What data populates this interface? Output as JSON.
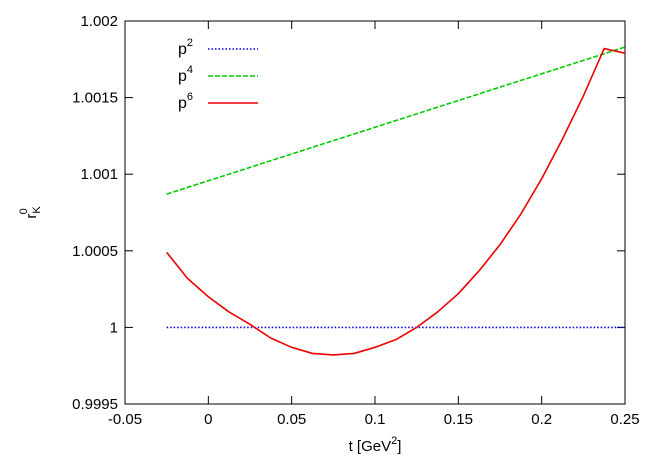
{
  "chart_data": {
    "type": "line",
    "xlabel": {
      "main": "t [GeV",
      "sup": "2",
      "tail": "]"
    },
    "ylabel": {
      "main": "r",
      "sub": "K",
      "sup": "0"
    },
    "xlim": [
      -0.05,
      0.25
    ],
    "ylim": [
      0.9995,
      1.002
    ],
    "xticks": [
      -0.05,
      0,
      0.05,
      0.1,
      0.15,
      0.2,
      0.25
    ],
    "xtick_labels": [
      "-0.05",
      "0",
      "0.05",
      "0.1",
      "0.15",
      "0.2",
      "0.25"
    ],
    "yticks": [
      0.9995,
      1.0,
      1.0005,
      1.001,
      1.0015,
      1.002
    ],
    "ytick_labels": [
      "0.9995",
      "1",
      "1.0005",
      "1.001",
      "1.0015",
      "1.002"
    ],
    "grid": false,
    "legend_position": "top-left",
    "series": [
      {
        "name": "p2",
        "label_base": "p",
        "label_sup": "2",
        "color": "#0000ee",
        "dash": "dotted",
        "x": [
          -0.025,
          0.25
        ],
        "y": [
          1.0,
          1.0
        ]
      },
      {
        "name": "p4",
        "label_base": "p",
        "label_sup": "4",
        "color": "#00cc00",
        "dash": "dashed",
        "x": [
          -0.025,
          0.25
        ],
        "y": [
          1.00087,
          1.00183
        ]
      },
      {
        "name": "p6",
        "label_base": "p",
        "label_sup": "6",
        "color": "#ee0000",
        "dash": "solid",
        "x": [
          -0.025,
          -0.0125,
          0,
          0.0125,
          0.025,
          0.0375,
          0.05,
          0.0625,
          0.075,
          0.0875,
          0.1,
          0.1125,
          0.125,
          0.1375,
          0.15,
          0.1625,
          0.175,
          0.1875,
          0.2,
          0.2125,
          0.225,
          0.2375,
          0.25
        ],
        "y": [
          1.00049,
          1.00032,
          1.0002,
          1.0001,
          1.00002,
          0.99993,
          0.99987,
          0.99983,
          0.99982,
          0.99983,
          0.99987,
          0.99992,
          1.0,
          1.0001,
          1.00022,
          1.00037,
          1.00054,
          1.00074,
          1.00097,
          1.00123,
          1.00151,
          1.00182,
          1.00179
        ]
      }
    ]
  }
}
